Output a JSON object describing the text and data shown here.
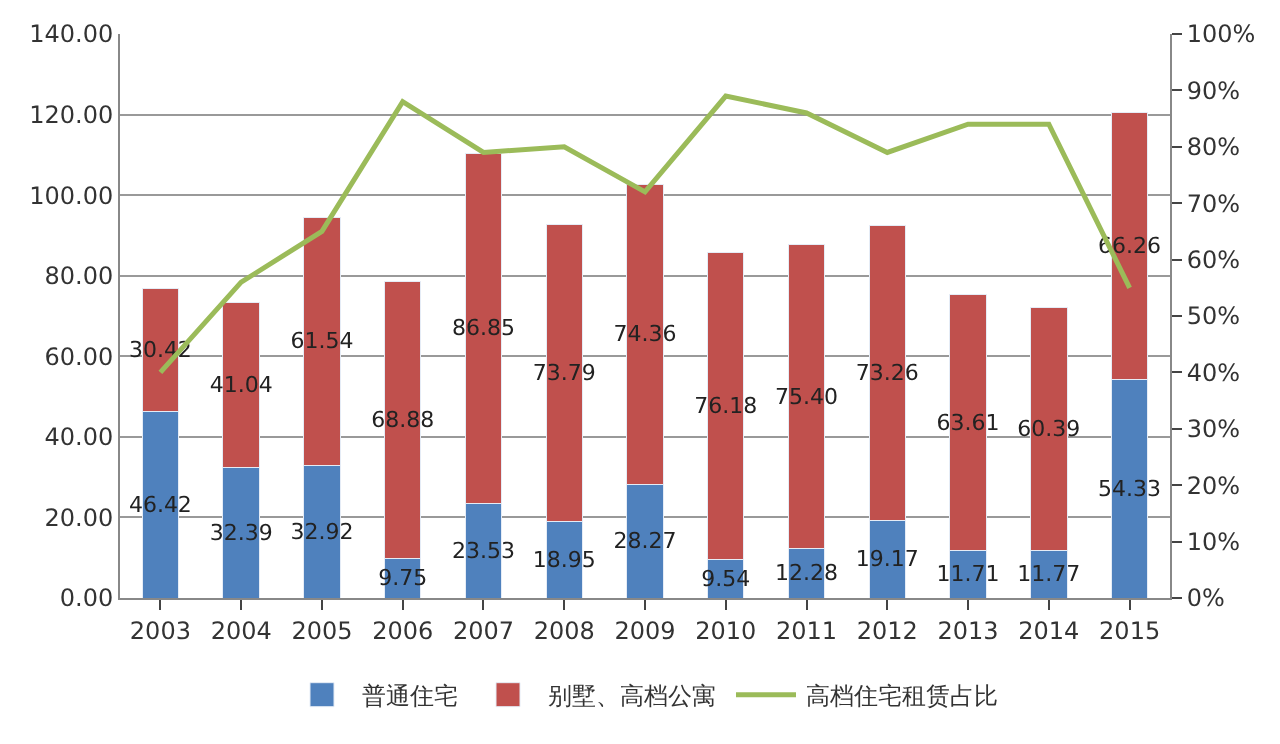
{
  "chart_data": {
    "type": "bar",
    "stacked": true,
    "categories": [
      "2003",
      "2004",
      "2005",
      "2006",
      "2007",
      "2008",
      "2009",
      "2010",
      "2011",
      "2012",
      "2013",
      "2014",
      "2015"
    ],
    "series": [
      {
        "name": "普通住宅",
        "color": "#4f81bd",
        "values": [
          46.42,
          32.39,
          32.92,
          9.75,
          23.53,
          18.95,
          28.27,
          9.54,
          12.28,
          19.17,
          11.71,
          11.77,
          54.33
        ],
        "value_labels": [
          "46.42",
          "32.39",
          "32.92",
          "9.75",
          "23.53",
          "18.95",
          "28.27",
          "9.54",
          "12.28",
          "19.17",
          "11.71",
          "11.77",
          "54.33"
        ]
      },
      {
        "name": "别墅、高档公寓",
        "color": "#c0504d",
        "values": [
          30.42,
          41.04,
          61.54,
          68.88,
          86.85,
          73.79,
          74.36,
          76.18,
          75.4,
          73.26,
          63.61,
          60.39,
          66.26
        ],
        "value_labels": [
          "30.42",
          "41.04",
          "61.54",
          "68.88",
          "86.85",
          "73.79",
          "74.36",
          "76.18",
          "75.40",
          "73.26",
          "63.61",
          "60.39",
          "66.26"
        ]
      },
      {
        "name": "高档住宅租赁占比",
        "type": "line",
        "axis": "y2",
        "color": "#9bbb59",
        "values": [
          40,
          56,
          65,
          88,
          79,
          80,
          72,
          89,
          86,
          79,
          84,
          84,
          55
        ]
      }
    ],
    "ylim": [
      0,
      140
    ],
    "yticks": [
      {
        "value": 0,
        "label": "0.00"
      },
      {
        "value": 20,
        "label": "20.00"
      },
      {
        "value": 40,
        "label": "40.00"
      },
      {
        "value": 60,
        "label": "60.00"
      },
      {
        "value": 80,
        "label": "80.00"
      },
      {
        "value": 100,
        "label": "100.00"
      },
      {
        "value": 120,
        "label": "120.00"
      },
      {
        "value": 140,
        "label": "140.00"
      }
    ],
    "y2lim": [
      0,
      100
    ],
    "y2ticks": [
      {
        "value": 0,
        "label": "0%"
      },
      {
        "value": 10,
        "label": "10%"
      },
      {
        "value": 20,
        "label": "20%"
      },
      {
        "value": 30,
        "label": "30%"
      },
      {
        "value": 40,
        "label": "40%"
      },
      {
        "value": 50,
        "label": "50%"
      },
      {
        "value": 60,
        "label": "60%"
      },
      {
        "value": 70,
        "label": "70%"
      },
      {
        "value": 80,
        "label": "80%"
      },
      {
        "value": 90,
        "label": "90%"
      },
      {
        "value": 100,
        "label": "100%"
      }
    ],
    "grid": "y",
    "legend": "bottom",
    "marker": "none",
    "line_style": "solid"
  }
}
